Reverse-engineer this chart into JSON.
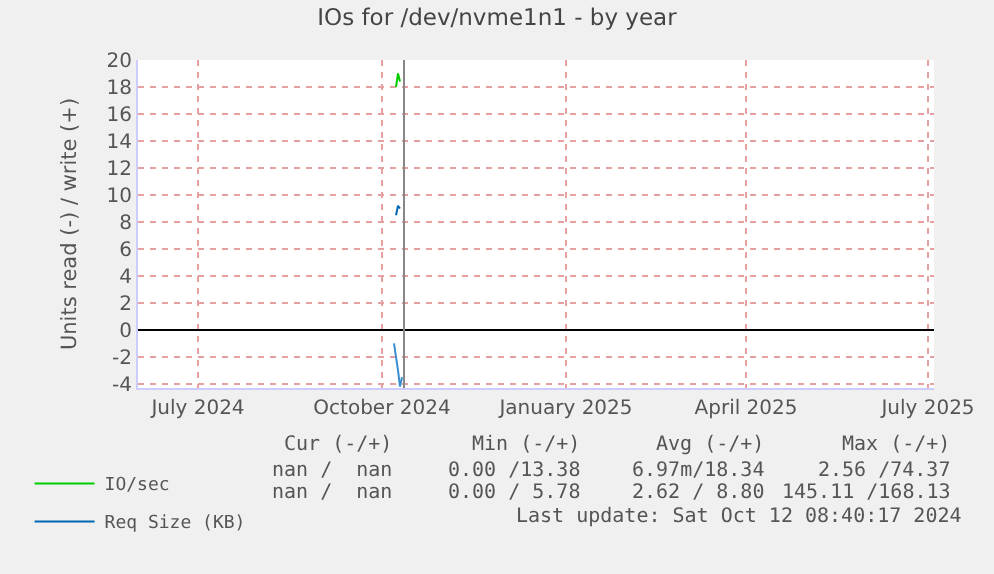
{
  "chart_data": {
    "type": "line",
    "title": "IOs for /dev/nvme1n1 - by year",
    "ylabel": "Units read (-) / write (+)",
    "series": [
      {
        "name": "IO/sec",
        "color": "#00cc00",
        "x": [
          "2024-10-08",
          "2024-10-09",
          "2024-10-10"
        ],
        "values": [
          18,
          19,
          18.4
        ]
      },
      {
        "name": "Req Size (KB)",
        "color": "#0066b3",
        "x": [
          "2024-10-08",
          "2024-10-09",
          "2024-10-10"
        ],
        "values": [
          8.5,
          9.2,
          9
        ]
      },
      {
        "color": "#3a8fd0",
        "x": [
          "2024-10-07",
          "2024-10-09",
          "2024-10-10",
          "2024-10-11"
        ],
        "values": [
          -1,
          -3,
          -4.2,
          -3.5
        ]
      }
    ],
    "xlim": [
      "2024-06-01",
      "2025-07-04"
    ],
    "xticks": [
      {
        "value": "2024-07-01",
        "label": "July 2024"
      },
      {
        "value": "2024-10-01",
        "label": "October 2024"
      },
      {
        "value": "2025-01-01",
        "label": "January 2025"
      },
      {
        "value": "2025-04-01",
        "label": "April 2025"
      },
      {
        "value": "2025-07-01",
        "label": "July 2025"
      }
    ],
    "ylim": [
      -4.3,
      20
    ],
    "yticks": [
      -4,
      -2,
      0,
      2,
      4,
      6,
      8,
      10,
      12,
      14,
      16,
      18,
      20
    ],
    "ref_lines": [
      {
        "axis": "y",
        "value": 0,
        "color": "#000000"
      },
      {
        "axis": "x",
        "value": "2024-10-12",
        "color": "#888888"
      }
    ],
    "grid": true,
    "legend": "bottom left",
    "marker": "none",
    "line_style": "solid",
    "annotations": [
      "Cur (-/+)",
      "Min (-/+)",
      "Avg (-/+)",
      "Max (-/+)",
      "nan /  nan",
      "0.00 /13.38",
      "6.97m/18.34",
      "2.56 /74.37",
      "nan /  nan",
      "0.00 / 5.78",
      "2.62 / 8.80",
      "145.11 /168.13",
      "Last update: Sat Oct 12 08:40:17 2024"
    ]
  }
}
